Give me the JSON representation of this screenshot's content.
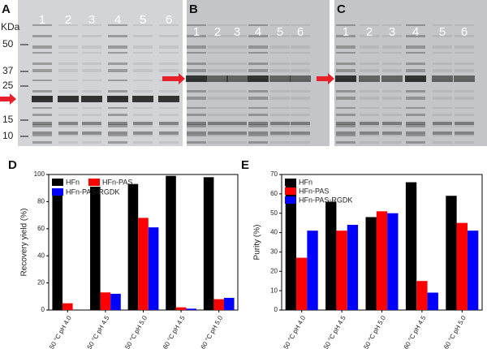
{
  "gels": [
    {
      "panel": "A",
      "unit": "KDa",
      "markers": [
        "50",
        "37",
        "25",
        "15",
        "10"
      ],
      "lanes": [
        "1",
        "2",
        "3",
        "4",
        "5",
        "6"
      ]
    },
    {
      "panel": "B",
      "lanes": [
        "1",
        "2",
        "3",
        "4",
        "5",
        "6"
      ]
    },
    {
      "panel": "C",
      "lanes": [
        "1",
        "2",
        "3",
        "4",
        "5",
        "6"
      ]
    }
  ],
  "chart_data": [
    {
      "type": "bar",
      "label": "D",
      "y_label": "Recovery yield (%)",
      "categories": [
        "50 °C pH 4.0",
        "50 °C pH 4.5",
        "50 °C pH 5.0",
        "60 °C pH 4.5",
        "60 °C pH 5.0"
      ],
      "series": [
        {
          "name": "HFn",
          "color": "#000000",
          "values": [
            88,
            91,
            93,
            99,
            98
          ]
        },
        {
          "name": "HFn-PAS",
          "color": "#ff0000",
          "values": [
            5,
            13,
            68,
            2,
            8
          ]
        },
        {
          "name": "HFn-PAS-RGDK",
          "color": "#0000ff",
          "values": [
            0,
            12,
            61,
            1,
            9
          ]
        }
      ],
      "ylim": [
        0,
        100
      ],
      "yticks": [
        0,
        20,
        40,
        60,
        80,
        100
      ],
      "legend": "upper left"
    },
    {
      "type": "bar",
      "label": "E",
      "y_label": "Purity (%)",
      "categories": [
        "50 °C pH 4.0",
        "50 °C pH 4.5",
        "50 °C pH 5.0",
        "60 °C pH 4.5",
        "60 °C pH 5.0"
      ],
      "series": [
        {
          "name": "HFn",
          "color": "#000000",
          "values": [
            65,
            56,
            48,
            66,
            59
          ]
        },
        {
          "name": "HFn-PAS",
          "color": "#ff0000",
          "values": [
            27,
            41,
            51,
            15,
            45
          ]
        },
        {
          "name": "HFn-PAS-RGDK",
          "color": "#0000ff",
          "values": [
            41,
            44,
            50,
            9,
            41
          ]
        }
      ],
      "ylim": [
        0,
        70
      ],
      "yticks": [
        0,
        10,
        20,
        30,
        40,
        50,
        60,
        70
      ],
      "legend": "upper left"
    }
  ]
}
